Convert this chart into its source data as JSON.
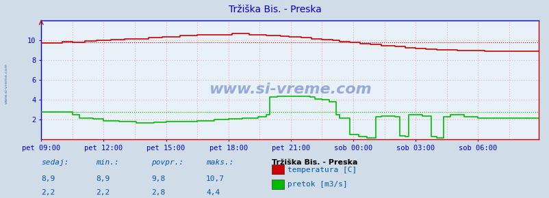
{
  "title": "Tržiška Bis. - Preska",
  "title_color": "#0000cc",
  "bg_color": "#d0dce8",
  "plot_bg_color": "#e8f0f8",
  "grid_h_color": "#cc8888",
  "grid_v_color": "#cc8888",
  "axis_color": "#0000cc",
  "x_tick_labels": [
    "pet 09:00",
    "pet 12:00",
    "pet 15:00",
    "pet 18:00",
    "pet 21:00",
    "sob 00:00",
    "sob 03:00",
    "sob 06:00"
  ],
  "x_tick_positions": [
    0,
    36,
    72,
    108,
    144,
    180,
    216,
    252
  ],
  "n_points": 288,
  "ylim": [
    0,
    12
  ],
  "yticks": [
    2,
    4,
    6,
    8,
    10
  ],
  "temp_color": "#cc0000",
  "flow_color": "#00bb00",
  "avg_temp": 9.8,
  "avg_flow": 2.8,
  "watermark_color": "#0000aa",
  "sidebar_text_color": "#0055aa",
  "legend_title": "Tržiška Bis. - Preska",
  "legend_items": [
    "temperatura [C]",
    "pretok [m3/s]"
  ],
  "legend_colors": [
    "#cc0000",
    "#00bb00"
  ],
  "stats_labels": [
    "sedaj:",
    "min.:",
    "povpr.:",
    "maks.:"
  ],
  "stats_temp": [
    "8,9",
    "8,9",
    "9,8",
    "10,7"
  ],
  "stats_flow": [
    "2,2",
    "2,2",
    "2,8",
    "4,4"
  ]
}
